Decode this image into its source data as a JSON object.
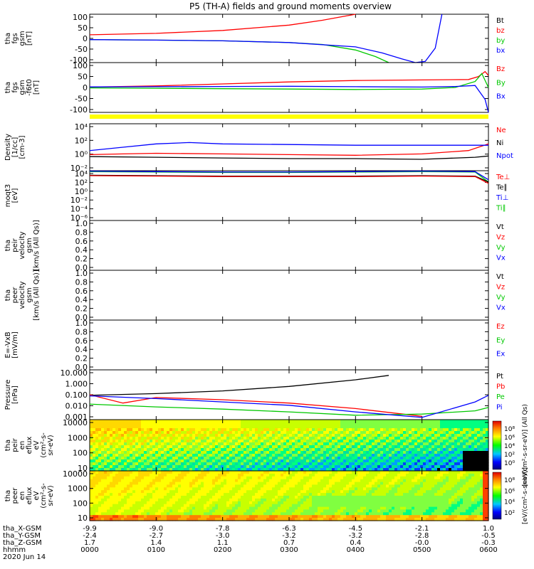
{
  "title": "P5 (TH-A) fields and ground moments overview",
  "colors": {
    "black": "#000000",
    "red": "#ff0000",
    "green": "#00c800",
    "blue": "#0000ff",
    "yellow": "#ffff00"
  },
  "time_axis": {
    "ticks": [
      {
        "hhmm": "0000",
        "x_gsm": "-9.9",
        "y_gsm": "-2.4",
        "z_gsm": "1.7"
      },
      {
        "hhmm": "0100",
        "x_gsm": "-9.0",
        "y_gsm": "-2.7",
        "z_gsm": "1.4"
      },
      {
        "hhmm": "0200",
        "x_gsm": "-7.8",
        "y_gsm": "-3.0",
        "z_gsm": "1.1"
      },
      {
        "hhmm": "0300",
        "x_gsm": "-6.3",
        "y_gsm": "-3.2",
        "z_gsm": "0.7"
      },
      {
        "hhmm": "0400",
        "x_gsm": "-4.5",
        "y_gsm": "-3.2",
        "z_gsm": "0.4"
      },
      {
        "hhmm": "0500",
        "x_gsm": "-2.1",
        "y_gsm": "-2.8",
        "z_gsm": "-0.0"
      },
      {
        "hhmm": "0600",
        "x_gsm": "1.0",
        "y_gsm": "-0.5",
        "z_gsm": "-0.3"
      }
    ],
    "row_labels": [
      "tha_X-GSM",
      "tha_Y-GSM",
      "tha_Z-GSM",
      "hhmm"
    ],
    "date": "2020 Jun 14"
  },
  "chart_data": [
    {
      "id": "fgs",
      "type": "line",
      "ylabel": [
        "tha",
        "fgs",
        "gsm",
        "[nT]"
      ],
      "yticks": [
        "100",
        "50",
        "0",
        "-50",
        "-100"
      ],
      "ylim": [
        -100,
        100
      ],
      "legend": [
        {
          "name": "Bt",
          "color": "#000000"
        },
        {
          "name": "bz",
          "color": "#ff0000"
        },
        {
          "name": "by",
          "color": "#00c800"
        },
        {
          "name": "bx",
          "color": "#0000ff"
        }
      ],
      "series": [
        {
          "name": "bz",
          "x": [
            0,
            1,
            2,
            3,
            3.5,
            4
          ],
          "y": [
            15,
            21,
            33,
            55,
            75,
            100
          ]
        },
        {
          "name": "by",
          "x": [
            0,
            1,
            2,
            3,
            3.5,
            4,
            4.3,
            4.5
          ],
          "y": [
            -5,
            -7,
            -10,
            -17,
            -25,
            -48,
            -75,
            -100
          ]
        },
        {
          "name": "bx",
          "x": [
            0,
            1,
            2,
            3,
            4,
            4.4,
            4.7,
            4.9,
            5.05,
            5.2,
            5.3
          ],
          "y": [
            -5,
            -7,
            -10,
            -17,
            -35,
            -60,
            -85,
            -100,
            -95,
            -40,
            100
          ]
        }
      ]
    },
    {
      "id": "fgs_despun",
      "type": "line",
      "ylabel": [
        "tha",
        "fgs",
        "gsm",
        "-f6t0",
        "[nT]"
      ],
      "yticks": [
        "100",
        "50",
        "0",
        "-50",
        "-100"
      ],
      "ylim": [
        -125,
        125
      ],
      "legend": [
        {
          "name": "Bz",
          "color": "#ff0000"
        },
        {
          "name": "By",
          "color": "#00c800"
        },
        {
          "name": "Bx",
          "color": "#0000ff"
        }
      ],
      "series": [
        {
          "name": "Bz",
          "x": [
            0,
            1,
            2,
            3,
            4,
            5,
            5.7,
            5.85,
            5.95,
            6
          ],
          "y": [
            2,
            8,
            18,
            28,
            35,
            38,
            40,
            55,
            80,
            60
          ]
        },
        {
          "name": "By",
          "x": [
            0,
            1,
            2,
            3,
            4,
            5,
            5.5,
            5.8,
            5.9,
            6
          ],
          "y": [
            -2,
            -4,
            -6,
            -8,
            -10,
            -8,
            0,
            30,
            70,
            0
          ]
        },
        {
          "name": "Bx",
          "x": [
            0,
            1,
            2,
            3,
            4,
            5,
            5.5,
            5.8,
            5.95,
            6
          ],
          "y": [
            3,
            4,
            5,
            6,
            4,
            2,
            5,
            10,
            -60,
            -125
          ]
        }
      ]
    },
    {
      "id": "density",
      "type": "line",
      "ylabel": [
        "Density",
        "[1/cc]",
        "[cm-3]"
      ],
      "yticks": [
        "10⁴",
        "10²",
        "10⁰",
        "10⁻²"
      ],
      "ylim_log10": [
        -3,
        4
      ],
      "legend": [
        {
          "name": "Ne",
          "color": "#ff0000"
        },
        {
          "name": "Ni",
          "color": "#000000"
        },
        {
          "name": "Npot",
          "color": "#0000ff"
        }
      ],
      "series": [
        {
          "name": "Ne",
          "x": [
            0,
            0.5,
            1,
            2,
            3,
            4,
            5,
            5.7,
            6
          ],
          "y": [
            -0.6,
            -0.5,
            -0.4,
            -0.5,
            -0.6,
            -0.7,
            -0.5,
            0,
            1
          ]
        },
        {
          "name": "Ni",
          "x": [
            0,
            1,
            2,
            3,
            4,
            5,
            5.8,
            6
          ],
          "y": [
            -0.9,
            -1.0,
            -1.1,
            -1.2,
            -1.2,
            -1.3,
            -1.0,
            -0.8
          ]
        },
        {
          "name": "Npot",
          "x": [
            0,
            0.5,
            1,
            1.5,
            2,
            3,
            4,
            5,
            6
          ],
          "y": [
            0,
            0.5,
            1,
            1.2,
            1.0,
            0.9,
            0.8,
            0.8,
            0.8
          ]
        }
      ]
    },
    {
      "id": "temperature",
      "type": "line",
      "ylabel": [
        "moqt3",
        "[eV]"
      ],
      "yticks": [
        "10⁴",
        "10²",
        "10⁰",
        "10⁻²",
        "10⁻⁴",
        "10⁻⁶"
      ],
      "ylim_log10": [
        -7,
        4
      ],
      "legend": [
        {
          "name": "Te⊥",
          "color": "#ff0000"
        },
        {
          "name": "Te∥",
          "color": "#000000"
        },
        {
          "name": "Ti⊥",
          "color": "#0000ff"
        },
        {
          "name": "Ti∥",
          "color": "#00c800"
        }
      ],
      "series": [
        {
          "name": "Ti∥",
          "x": [
            0,
            1,
            2,
            3,
            4,
            5,
            5.8,
            6
          ],
          "y": [
            3.8,
            3.7,
            3.6,
            3.6,
            3.7,
            3.8,
            3.7,
            1.5
          ]
        },
        {
          "name": "Ti⊥",
          "x": [
            0,
            1,
            2,
            3,
            4,
            5,
            5.8,
            6
          ],
          "y": [
            3.9,
            3.8,
            3.7,
            3.7,
            3.8,
            3.9,
            3.8,
            2
          ]
        },
        {
          "name": "Te∥",
          "x": [
            0,
            1,
            2,
            3,
            4,
            5,
            5.8,
            6
          ],
          "y": [
            3.0,
            2.9,
            2.8,
            2.8,
            2.8,
            2.9,
            2.8,
            1.5
          ]
        },
        {
          "name": "Te⊥",
          "x": [
            0,
            1,
            2,
            3,
            4,
            5,
            5.8,
            6
          ],
          "y": [
            2.9,
            2.8,
            2.7,
            2.7,
            2.7,
            2.8,
            2.7,
            1.2
          ]
        }
      ]
    },
    {
      "id": "peir_velocity",
      "type": "line",
      "ylabel": [
        "tha",
        "peir",
        "velocity",
        "gsm",
        "[km/s (All Qs)]"
      ],
      "yticks": [
        "1.0",
        "0.8",
        "0.6",
        "0.4",
        "0.2",
        "0.0"
      ],
      "ylim": [
        0,
        1
      ],
      "legend": [
        {
          "name": "Vt",
          "color": "#000000"
        },
        {
          "name": "Vz",
          "color": "#ff0000"
        },
        {
          "name": "Vy",
          "color": "#00c800"
        },
        {
          "name": "Vx",
          "color": "#0000ff"
        }
      ],
      "series": []
    },
    {
      "id": "peer_velocity",
      "type": "line",
      "ylabel": [
        "tha",
        "peer",
        "velocity",
        "gsm",
        "[km/s (All Qs)]"
      ],
      "yticks": [
        "1.0",
        "0.8",
        "0.6",
        "0.4",
        "0.2",
        "0.0"
      ],
      "ylim": [
        0,
        1
      ],
      "legend": [
        {
          "name": "Vt",
          "color": "#000000"
        },
        {
          "name": "Vz",
          "color": "#ff0000"
        },
        {
          "name": "Vy",
          "color": "#00c800"
        },
        {
          "name": "Vx",
          "color": "#0000ff"
        }
      ],
      "series": []
    },
    {
      "id": "efield",
      "type": "line",
      "ylabel": [
        "E=-VxB",
        "[mV/m]"
      ],
      "yticks": [
        "1.0",
        "0.8",
        "0.6",
        "0.4",
        "0.2",
        "0.0"
      ],
      "ylim": [
        0,
        1
      ],
      "legend": [
        {
          "name": "Ez",
          "color": "#ff0000"
        },
        {
          "name": "Ey",
          "color": "#00c800"
        },
        {
          "name": "Ex",
          "color": "#0000ff"
        }
      ],
      "series": []
    },
    {
      "id": "pressure",
      "type": "line",
      "ylabel": [
        "Pressure",
        "[nPa]"
      ],
      "yticks": [
        "10.000",
        "1.000",
        "0.100",
        "0.010",
        "0.001"
      ],
      "ylim_log10": [
        -3,
        1.5
      ],
      "legend": [
        {
          "name": "Pt",
          "color": "#000000"
        },
        {
          "name": "Pb",
          "color": "#ff0000"
        },
        {
          "name": "Pe",
          "color": "#00c800"
        },
        {
          "name": "Pi",
          "color": "#0000ff"
        }
      ],
      "series": [
        {
          "name": "Pt",
          "x": [
            0,
            1,
            2,
            3,
            4,
            4.5
          ],
          "y": [
            -0.8,
            -0.65,
            -0.4,
            0,
            0.6,
            1.0
          ]
        },
        {
          "name": "Pb",
          "x": [
            0,
            0.5,
            1,
            2,
            3,
            4,
            5
          ],
          "y": [
            -0.75,
            -1.5,
            -1.0,
            -1.2,
            -1.5,
            -2.0,
            -2.7
          ]
        },
        {
          "name": "Pe",
          "x": [
            0,
            1,
            2,
            3,
            4,
            5,
            5.8,
            6
          ],
          "y": [
            -1.6,
            -1.85,
            -2.05,
            -2.3,
            -2.6,
            -2.5,
            -2.2,
            -1.9
          ]
        },
        {
          "name": "Pi",
          "x": [
            0,
            1,
            2,
            3,
            4,
            5,
            5.8,
            6
          ],
          "y": [
            -0.85,
            -1.1,
            -1.4,
            -1.7,
            -2.3,
            -2.8,
            -1.4,
            -0.8
          ]
        }
      ]
    },
    {
      "id": "peir_spectrogram",
      "type": "heatmap",
      "ylabel": [
        "tha",
        "peir",
        "en",
        "eflux",
        "eV",
        "(cm²-s-",
        "sr-eV)"
      ],
      "yticks": [
        "10000",
        "1000",
        "100",
        "10"
      ],
      "colorbar_ticks": [
        "10⁸",
        "10⁶",
        "10⁴",
        "10²",
        "10⁰"
      ],
      "colorbar_label": "[eV/(cm²-s-sr-eV)] (All Qs)"
    },
    {
      "id": "peer_spectrogram",
      "type": "heatmap",
      "ylabel": [
        "tha",
        "peer",
        "en",
        "eflux",
        "eV",
        "(cm²-s-",
        "sr-eV)"
      ],
      "yticks": [
        "10000",
        "1000",
        "100",
        "10"
      ],
      "colorbar_ticks": [
        "10⁸",
        "10⁶",
        "10⁴",
        "10²"
      ],
      "colorbar_label": "[eV/(cm²-s-sr-eV)]"
    }
  ]
}
